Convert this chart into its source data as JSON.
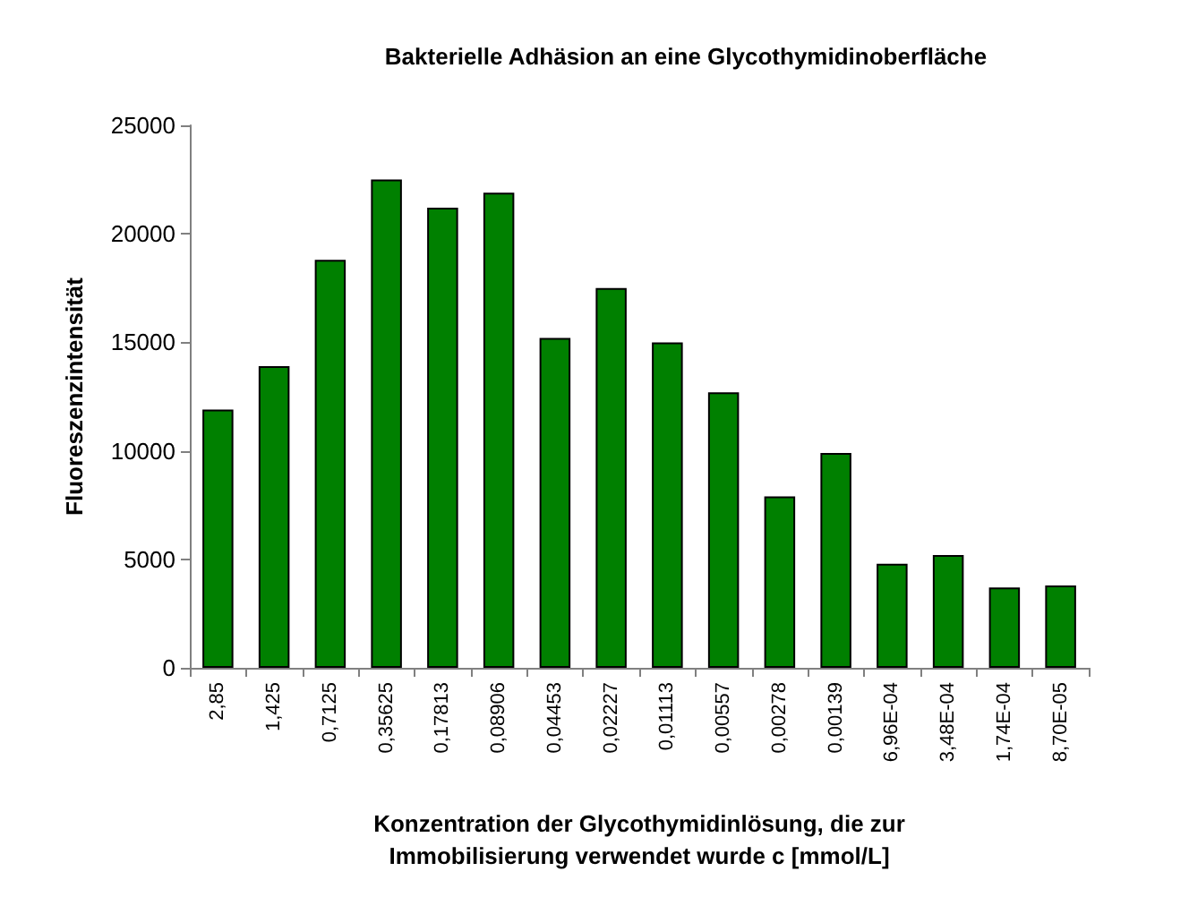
{
  "chart_data": {
    "type": "bar",
    "title": "Bakterielle Adhäsion an eine Glycothymidinoberfläche",
    "xlabel": "Konzentration der Glycothymidinlösung, die zur\nImmobilisierung verwendet wurde c [mmol/L]",
    "ylabel": "Fluoreszenzintensität",
    "categories": [
      "2,85",
      "1,425",
      "0,7125",
      "0,35625",
      "0,17813",
      "0,08906",
      "0,04453",
      "0,02227",
      "0,01113",
      "0,00557",
      "0,00278",
      "0,00139",
      "6,96E-04",
      "3,48E-04",
      "1,74E-04",
      "8,70E-05"
    ],
    "values": [
      11900,
      13900,
      18800,
      22500,
      21200,
      21900,
      15200,
      17500,
      15000,
      12700,
      7900,
      9900,
      4800,
      5200,
      3700,
      3800
    ],
    "color": "#008000",
    "ylim": [
      0,
      25000
    ],
    "yticks": [
      0,
      5000,
      10000,
      15000,
      20000,
      25000
    ],
    "grid": false
  }
}
